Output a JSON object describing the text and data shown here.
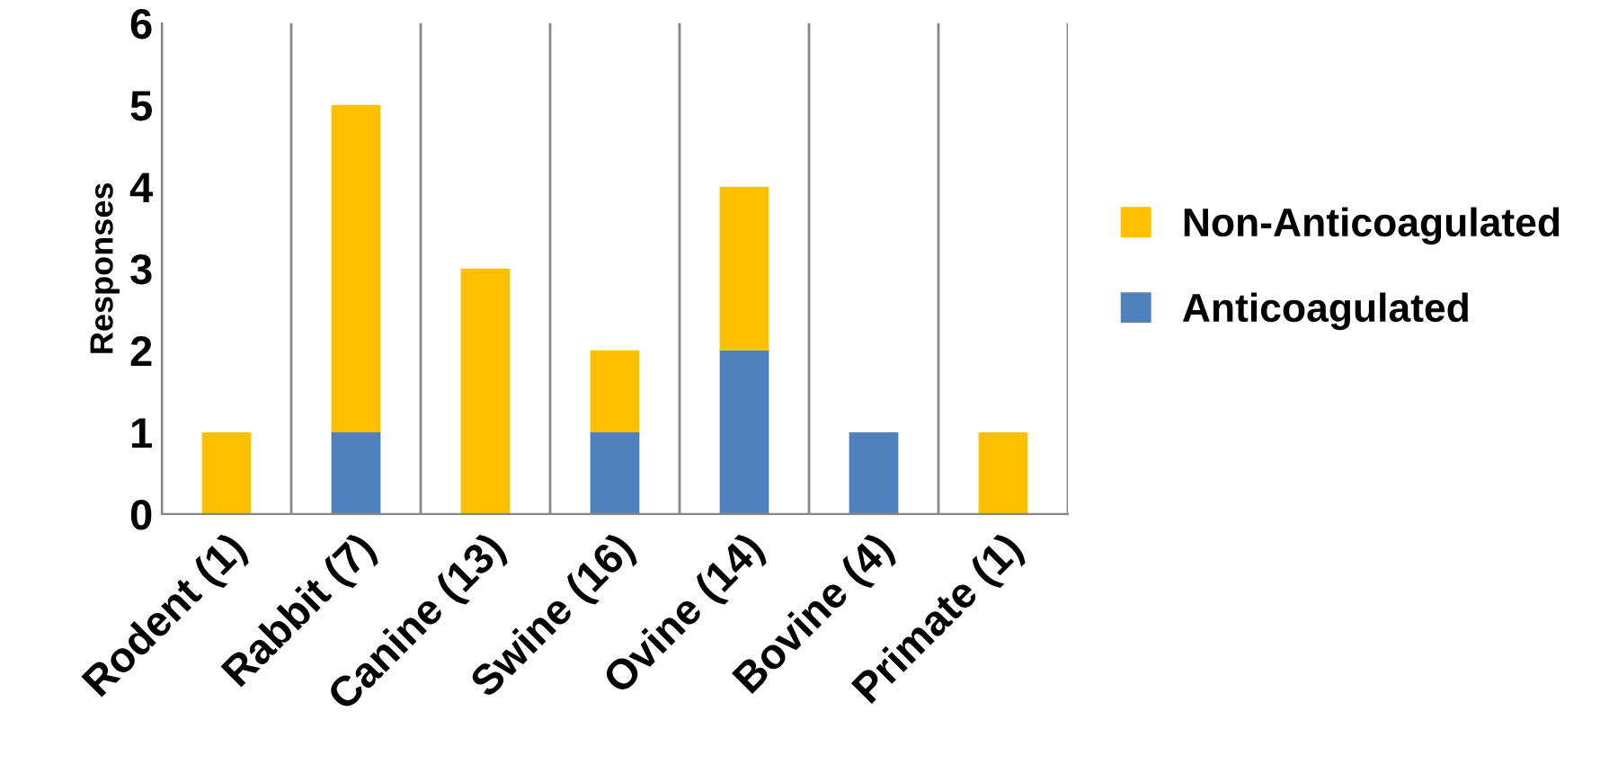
{
  "chart_data": {
    "type": "bar",
    "stacked": true,
    "ylabel": "Responses",
    "categories": [
      "Rodent (1)",
      "Rabbit (7)",
      "Canine (13)",
      "Swine (16)",
      "Ovine (14)",
      "Bovine (4)",
      "Primate (1)"
    ],
    "series": [
      {
        "name": "Anticoagulated",
        "color": "#4f81bd",
        "values": [
          0,
          1,
          0,
          1,
          2,
          1,
          0
        ]
      },
      {
        "name": "Non-Anticoagulated",
        "color": "#ffc000",
        "values": [
          1,
          4,
          3,
          1,
          2,
          0,
          1
        ]
      }
    ],
    "ylim": [
      0,
      6
    ],
    "yticks": [
      0,
      1,
      2,
      3,
      4,
      5,
      6
    ],
    "grid": "x",
    "legend": "right"
  }
}
